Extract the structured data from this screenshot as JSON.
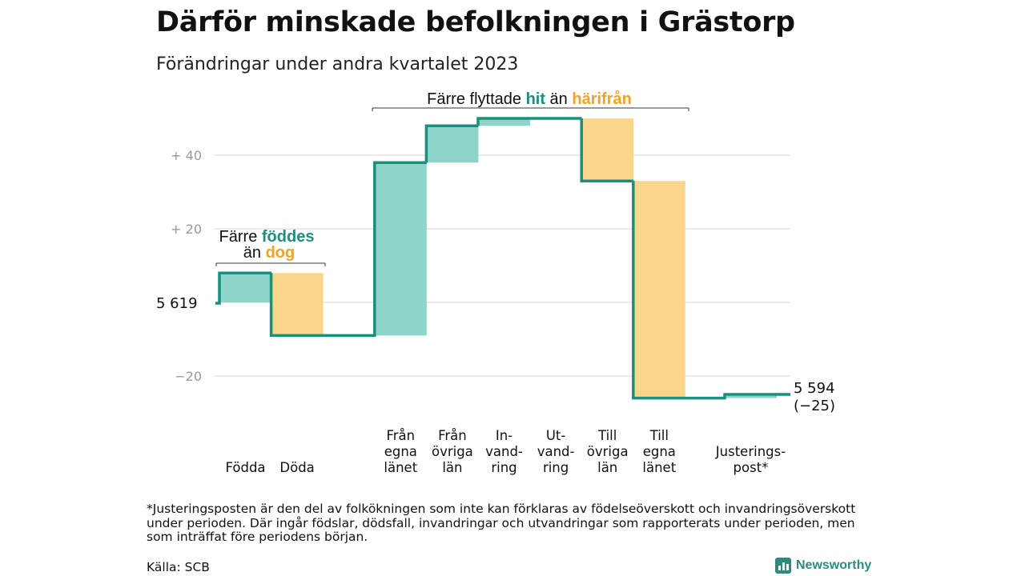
{
  "title": "Därför minskade befolkningen i Grästorp",
  "subtitle": "Förändringar under andra kvartalet 2023",
  "colors": {
    "increase": "#8fd4c9",
    "decrease": "#fad68c",
    "line": "#1a8f7d",
    "grid": "#dddddd",
    "teal_text": "#1a8f7d",
    "orange_text": "#f0a326"
  },
  "chart_data": {
    "type": "waterfall",
    "start_value": 5619,
    "start_label": "5 619",
    "end_label_value": "5 594",
    "end_label_change": "(−25)",
    "y_ticks": [
      {
        "value": 40,
        "label": "+ 40"
      },
      {
        "value": 20,
        "label": "+ 20"
      },
      {
        "value": -20,
        "label": "−20"
      }
    ],
    "ylim": [
      -28,
      52
    ],
    "steps": [
      {
        "category": [
          "Födda"
        ],
        "value": 8
      },
      {
        "category": [
          "Döda"
        ],
        "value": -17
      },
      {
        "category": [
          "Från",
          "egna",
          "länet"
        ],
        "value": 47
      },
      {
        "category": [
          "Från",
          "övriga",
          "län"
        ],
        "value": 10
      },
      {
        "category": [
          "In-",
          "vand-",
          "ring"
        ],
        "value": 2
      },
      {
        "category": [
          "Ut-",
          "vand-",
          "ring"
        ],
        "value": 0
      },
      {
        "category": [
          "Till",
          "övriga",
          "län"
        ],
        "value": -17
      },
      {
        "category": [
          "Till",
          "egna",
          "länet"
        ],
        "value": -59
      },
      {
        "category": [
          "Justerings-",
          "post*"
        ],
        "value": 1
      }
    ]
  },
  "annotations": {
    "birth": {
      "line1_prefix": "Färre ",
      "line1_key": "föddes",
      "line2_prefix": "än ",
      "line2_key": "dog"
    },
    "migration": {
      "prefix": "Färre flyttade ",
      "key1": "hit",
      "mid": " än ",
      "key2": "härifrån"
    }
  },
  "footnote": "*Justeringsposten är den del av folkökningen som inte kan förklaras av födelseöverskott och invandringsöverskott under perioden. Där ingår födslar, dödsfall, invandringar och utvandringar som rapporterats under perioden, men som inträffat före periodens början.",
  "source": "Källa: SCB",
  "logo_text": "Newsworthy"
}
